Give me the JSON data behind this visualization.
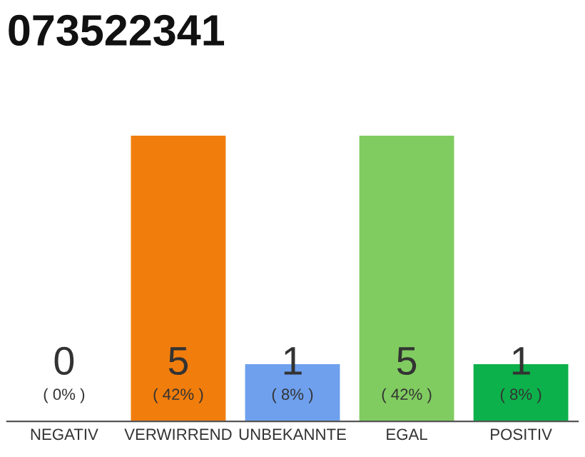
{
  "chart_data": {
    "type": "bar",
    "title": "073522341",
    "categories": [
      "NEGATIV",
      "VERWIRREND",
      "UNBEKANNTE",
      "EGAL",
      "POSITIV"
    ],
    "values": [
      0,
      5,
      1,
      5,
      1
    ],
    "colors": [
      "#cccccc",
      "#f07d0c",
      "#6ea0ee",
      "#80cc60",
      "#0db14b"
    ],
    "value_labels": [
      "0\n( 0% )",
      "5\n( 42% )",
      "1\n( 8% )",
      "5\n( 42% )",
      "1\n( 8% )"
    ],
    "ylim": [
      0,
      5
    ],
    "grid": false,
    "legend": false,
    "tick_labels": "x"
  }
}
